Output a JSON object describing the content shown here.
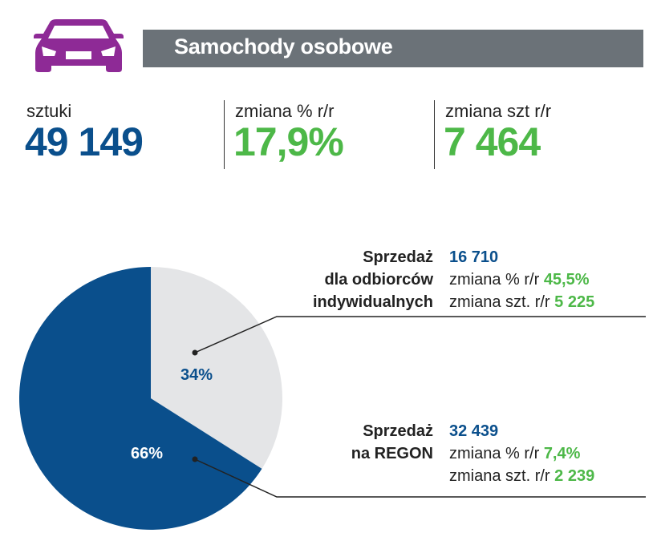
{
  "header": {
    "title": "Samochody osobowe",
    "icon": "car-icon"
  },
  "stats": [
    {
      "label": "sztuki",
      "value": "49 149"
    },
    {
      "label": "zmiana % r/r",
      "value": "17,9%"
    },
    {
      "label": "zmiana szt r/r",
      "value": "7 464"
    }
  ],
  "segments": [
    {
      "title_lines": [
        "Sprzedaż",
        "dla odbiorców",
        "indywidualnych"
      ],
      "value": "16 710",
      "change_pct_label": "zmiana % r/r",
      "change_pct": "45,5%",
      "change_units_label": "zmiana szt. r/r",
      "change_units": "5 225",
      "share_label": "34%"
    },
    {
      "title_lines": [
        "Sprzedaż",
        "na REGON"
      ],
      "value": "32 439",
      "change_pct_label": "zmiana % r/r",
      "change_pct": "7,4%",
      "change_units_label": "zmiana szt. r/r",
      "change_units": "2 239",
      "share_label": "66%"
    }
  ],
  "colors": {
    "purple": "#8e2a96",
    "blue": "#0a4f8c",
    "green": "#4db848",
    "gray": "#e4e5e7",
    "bar": "#6b7278"
  },
  "chart_data": {
    "type": "pie",
    "title": "",
    "slices": [
      {
        "name": "Sprzedaż dla odbiorców indywidualnych",
        "value": 34,
        "units": 16710,
        "color": "#e4e5e7"
      },
      {
        "name": "Sprzedaż na REGON",
        "value": 66,
        "units": 32439,
        "color": "#0a4f8c"
      }
    ]
  }
}
